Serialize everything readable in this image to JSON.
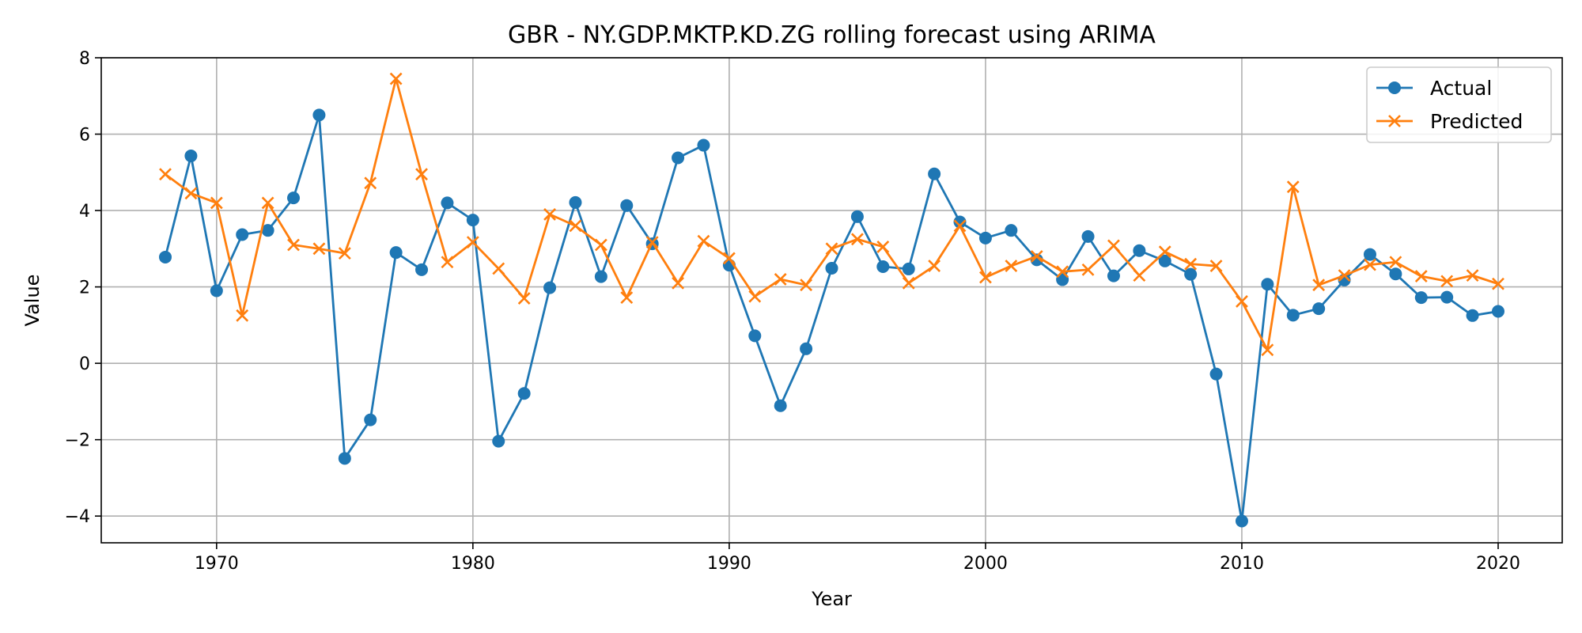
{
  "chart_data": {
    "type": "line",
    "title": "GBR - NY.GDP.MKTP.KD.ZG rolling forecast using ARIMA",
    "xlabel": "Year",
    "ylabel": "Value",
    "xlim": [
      1965.5,
      2022.5
    ],
    "ylim": [
      -4.7,
      8.0
    ],
    "xticks": [
      1970,
      1980,
      1990,
      2000,
      2010,
      2020
    ],
    "yticks": [
      -4,
      -2,
      0,
      2,
      4,
      6,
      8
    ],
    "grid": true,
    "legend": "top-right",
    "x": [
      1968,
      1969,
      1970,
      1971,
      1972,
      1973,
      1974,
      1975,
      1976,
      1977,
      1978,
      1979,
      1980,
      1981,
      1982,
      1983,
      1984,
      1985,
      1986,
      1987,
      1988,
      1989,
      1990,
      1991,
      1992,
      1993,
      1994,
      1995,
      1996,
      1997,
      1998,
      1999,
      2000,
      2001,
      2002,
      2003,
      2004,
      2005,
      2006,
      2007,
      2008,
      2009,
      2010,
      2011,
      2012,
      2013,
      2014,
      2015,
      2016,
      2017,
      2018,
      2019,
      2020
    ],
    "series": [
      {
        "name": "Actual",
        "color": "#1f77b4",
        "marker": "circle",
        "values": [
          2.78,
          5.43,
          1.9,
          3.37,
          3.48,
          4.33,
          6.5,
          -2.49,
          -1.48,
          2.9,
          2.45,
          4.2,
          3.75,
          -2.04,
          -0.79,
          1.98,
          4.21,
          2.27,
          4.13,
          3.13,
          5.38,
          5.71,
          2.57,
          0.72,
          -1.11,
          0.38,
          2.49,
          3.84,
          2.53,
          2.47,
          4.96,
          3.7,
          3.28,
          3.48,
          2.71,
          2.19,
          3.32,
          2.29,
          2.95,
          2.68,
          2.33,
          -0.28,
          -4.13,
          2.07,
          1.26,
          1.43,
          2.18,
          2.85,
          2.34,
          1.72,
          1.73,
          1.25,
          1.36
        ]
      },
      {
        "name": "Predicted",
        "color": "#ff7f0e",
        "marker": "x",
        "values": [
          4.95,
          4.45,
          4.2,
          1.25,
          4.2,
          3.1,
          3.0,
          2.88,
          4.72,
          7.45,
          4.95,
          2.65,
          3.17,
          2.48,
          1.7,
          3.9,
          3.6,
          3.1,
          1.72,
          3.17,
          2.1,
          3.2,
          2.75,
          1.75,
          2.2,
          2.05,
          3.0,
          3.25,
          3.05,
          2.1,
          2.55,
          3.6,
          2.25,
          2.55,
          2.8,
          2.4,
          2.45,
          3.08,
          2.3,
          2.92,
          2.6,
          2.55,
          1.62,
          0.35,
          4.62,
          2.05,
          2.3,
          2.58,
          2.65,
          2.28,
          2.15,
          2.3,
          2.08
        ]
      }
    ]
  }
}
